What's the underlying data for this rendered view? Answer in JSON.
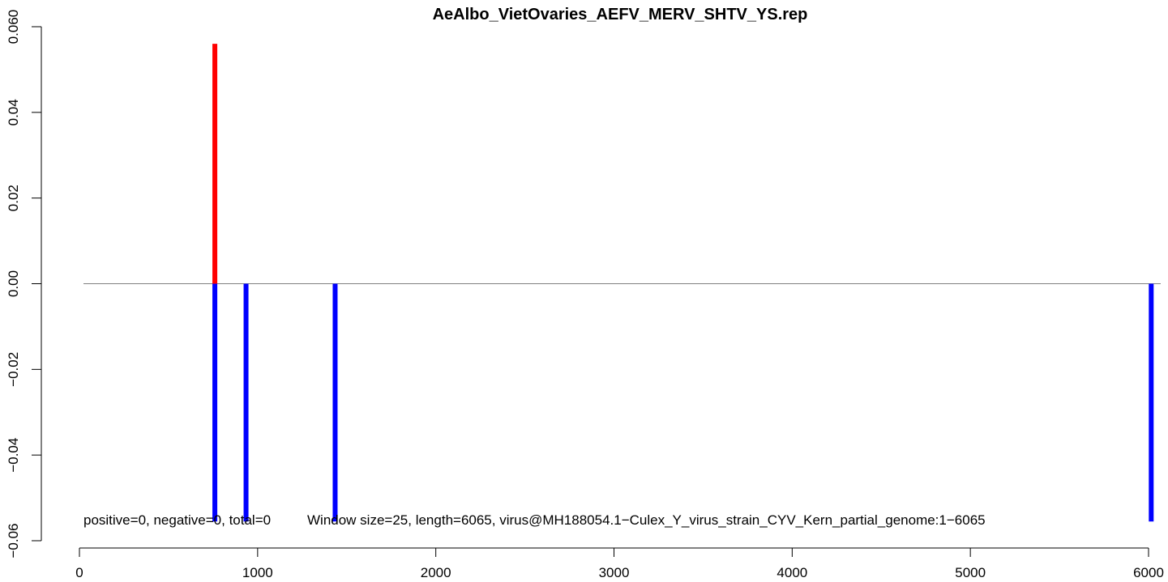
{
  "chart_data": {
    "type": "bar",
    "title": "AeAlbo_VietOvaries_AEFV_MERV_SHTV_YS.rep",
    "xlabel": "",
    "ylabel": "",
    "xlim": [
      0,
      6065
    ],
    "ylim": [
      -0.06,
      0.06
    ],
    "x_ticks": [
      0,
      1000,
      2000,
      3000,
      4000,
      5000,
      6000
    ],
    "y_ticks": [
      -0.06,
      -0.04,
      -0.02,
      0.0,
      0.02,
      0.04,
      0.06
    ],
    "y_tick_labels": [
      "−0.06",
      "−0.04",
      "−0.02",
      "0.00",
      "0.02",
      "0.04",
      "0.060"
    ],
    "series": [
      {
        "color": "#ff0000",
        "points": [
          {
            "x": 760,
            "y": 0.056
          }
        ]
      },
      {
        "color": "#0000ff",
        "points": [
          {
            "x": 760,
            "y": -0.0555
          },
          {
            "x": 935,
            "y": -0.0555
          },
          {
            "x": 1435,
            "y": -0.0555
          },
          {
            "x": 6015,
            "y": -0.0555
          }
        ]
      }
    ],
    "baseline": 0,
    "baseline_color": "#808080",
    "annotations": [
      "positive=0, negative=0, total=0",
      "Window size=25, length=6065, virus@MH188054.1−Culex_Y_virus_strain_CYV_Kern_partial_genome:1−6065"
    ],
    "grid": false
  }
}
